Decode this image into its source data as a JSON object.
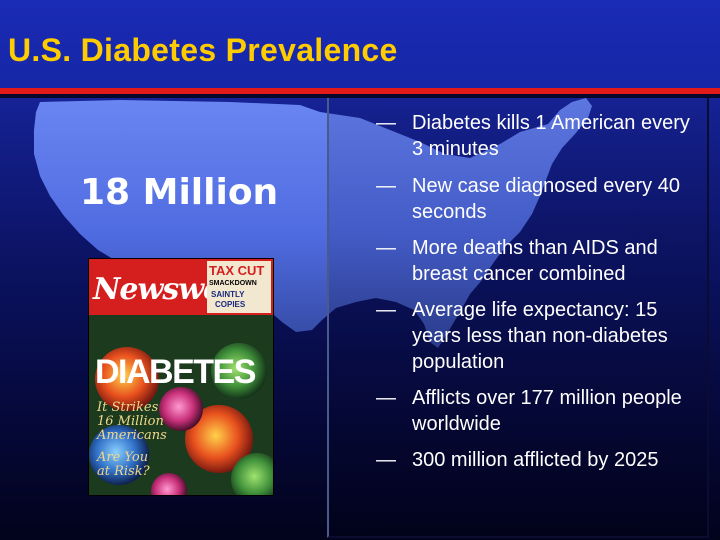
{
  "slide": {
    "title": "U.S. Diabetes Prevalence",
    "headline_number": "18 Million"
  },
  "cover": {
    "masthead": "Newswee",
    "headline": "DIABETES",
    "tagline": [
      "It Strikes",
      "16 Million",
      "Americans"
    ],
    "question": [
      "Are You",
      "at Risk?"
    ],
    "corner_headline": "TAX CUT",
    "corner_sub": "SMACKDOWN",
    "corner_story": [
      "SAINTLY",
      "COPIES"
    ]
  },
  "facts": [
    {
      "dash": "—",
      "text": "Diabetes kills 1 American every 3 minutes"
    },
    {
      "dash": "—",
      "text": "New case diagnosed every 40 seconds"
    },
    {
      "dash": "—",
      "text": "More deaths than AIDS and breast cancer combined"
    },
    {
      "dash": "—",
      "text": "Average life expectancy: 15 years less than non-diabetes population"
    },
    {
      "dash": "—",
      "text": "Afflicts over 177 million people worldwide"
    },
    {
      "dash": "—",
      "text": "300 million afflicted by 2025"
    }
  ],
  "colors": {
    "title": "#ffcc00",
    "accent_rule": "#e21a1a",
    "background": "#0b1260",
    "map": "#5c79ea",
    "text": "#ffffff"
  }
}
